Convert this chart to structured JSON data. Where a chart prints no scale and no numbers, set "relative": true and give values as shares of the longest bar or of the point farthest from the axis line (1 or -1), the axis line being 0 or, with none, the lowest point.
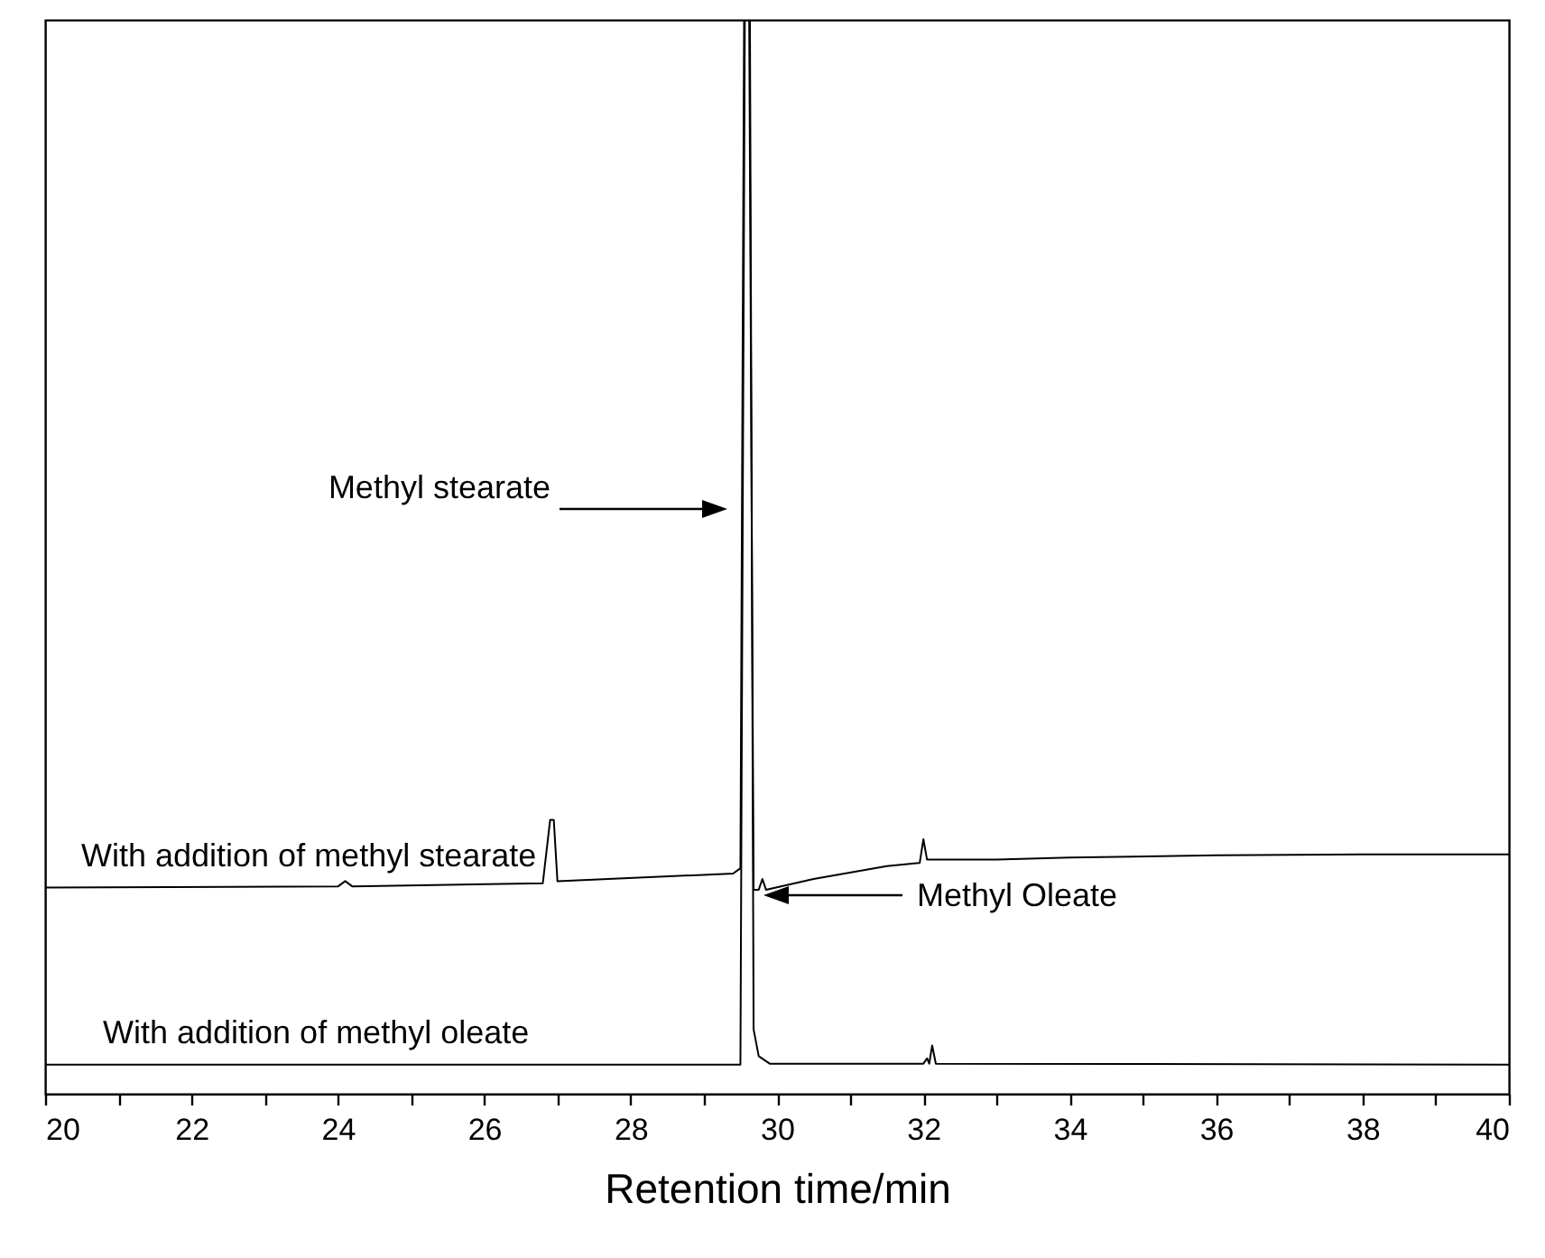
{
  "chart_data": {
    "type": "line",
    "relative": true,
    "xlabel": "Retention time/min",
    "xlim": [
      20,
      40
    ],
    "xticks": [
      20,
      {
        "value": 21,
        "label": null
      },
      22,
      {
        "value": 23,
        "label": null
      },
      24,
      {
        "value": 25,
        "label": null
      },
      26,
      {
        "value": 27,
        "label": null
      },
      28,
      {
        "value": 29,
        "label": null
      },
      30,
      {
        "value": 31,
        "label": null
      },
      32,
      {
        "value": 33,
        "label": null
      },
      34,
      {
        "value": 35,
        "label": null
      },
      36,
      {
        "value": 37,
        "label": null
      },
      38,
      {
        "value": 39,
        "label": null
      },
      40
    ],
    "grid": false,
    "marker": "none",
    "line_style": "solid",
    "series": [
      {
        "name": "With addition of methyl stearate",
        "color": "#000000",
        "x": [
          20,
          24.0,
          24.1,
          24.2,
          26.8,
          26.9,
          26.95,
          27.0,
          29.4,
          29.5,
          29.55,
          29.62,
          29.68,
          29.75,
          29.8,
          29.85,
          30.5,
          31.5,
          31.95,
          32.0,
          32.05,
          33,
          34,
          36,
          38,
          40
        ],
        "values": [
          0.192,
          0.193,
          0.198,
          0.193,
          0.196,
          0.255,
          0.255,
          0.198,
          0.205,
          0.21,
          1,
          1,
          0.19,
          0.19,
          0.2,
          0.19,
          0.2,
          0.212,
          0.215,
          0.237,
          0.218,
          0.218,
          0.22,
          0.222,
          0.223,
          0.223
        ]
      },
      {
        "name": "With addition of methyl oleate",
        "color": "#000000",
        "x": [
          20,
          29.5,
          29.56,
          29.63,
          29.68,
          29.75,
          29.9,
          32.0,
          32.05,
          32.08,
          32.12,
          32.17,
          40
        ],
        "values": [
          0.027,
          0.027,
          1,
          1,
          0.06,
          0.035,
          0.028,
          0.028,
          0.033,
          0.028,
          0.045,
          0.028,
          0.027
        ]
      }
    ],
    "annotations": [
      "Methyl stearate",
      "Methyl Oleate"
    ]
  }
}
